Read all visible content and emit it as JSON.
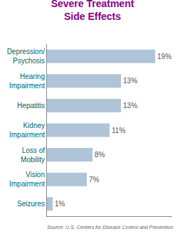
{
  "chart_data": {
    "type": "bar",
    "orientation": "horizontal",
    "title": "Severe Treatment\nSide Effects",
    "categories": [
      "Seizures",
      "Vision\nImpairment",
      "Loss of\nMobility",
      "Kidney\nImpairment",
      "Hepatitis",
      "Hearing\nImpairment",
      "Depression/\nPsychosis"
    ],
    "values": [
      1,
      7,
      8,
      11,
      13,
      13,
      19
    ],
    "value_labels": [
      "1%",
      "7%",
      "8%",
      "11%",
      "13%",
      "13%",
      "19%"
    ],
    "data_labels": true,
    "color": "#b0c4d8",
    "xlim": [
      0,
      22
    ],
    "tick_labels": "y",
    "grid": false,
    "annotations": [
      "Source: U.S. Centers for Disease Control and Prevention"
    ]
  }
}
